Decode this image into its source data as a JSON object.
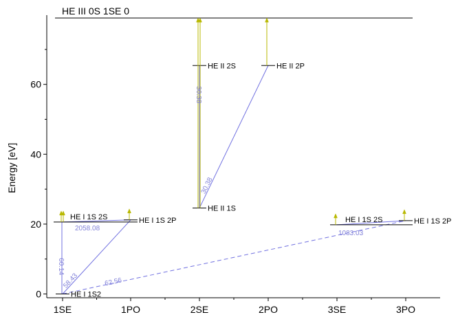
{
  "chart_data": {
    "type": "diagram",
    "ylabel": "Energy [eV]",
    "ylim": [
      0,
      80
    ],
    "y_ticks": [
      "0",
      "20",
      "40",
      "60"
    ],
    "x_categories": [
      "1SE",
      "1PO",
      "2SE",
      "2PO",
      "3SE",
      "3PO"
    ],
    "ionization_limit": {
      "label": "HE III 0S 1SE 0",
      "energy": 79.0
    },
    "levels": [
      {
        "id": "he1_1s2",
        "label": "HE I 1S2",
        "col": "1SE",
        "energy": 0.0
      },
      {
        "id": "he1_1s2s_1se",
        "label": "HE I 1S 2S",
        "col": "1SE",
        "energy": 20.6
      },
      {
        "id": "he1_1s2p_1po",
        "label": "HE I 1S 2P",
        "col": "1PO",
        "energy": 21.2
      },
      {
        "id": "he2_1s",
        "label": "HE II 1S",
        "col": "2SE",
        "energy": 24.6
      },
      {
        "id": "he2_2s",
        "label": "HE II 2S",
        "col": "2SE",
        "energy": 65.4
      },
      {
        "id": "he2_2p",
        "label": "HE II 2P",
        "col": "2PO",
        "energy": 65.4
      },
      {
        "id": "he1_1s2s_3se",
        "label": "HE I 1S 2S",
        "col": "3SE",
        "energy": 19.8
      },
      {
        "id": "he1_1s2p_3po",
        "label": "HE I 1S 2P",
        "col": "3PO",
        "energy": 21.0
      }
    ],
    "transitions": [
      {
        "from": "he1_1s2",
        "to": "he1_1s2p_1po",
        "label": "58.43",
        "style": "solid"
      },
      {
        "from": "he1_1s2s_1se",
        "to": "he1_1s2p_1po",
        "label": "2058.08",
        "style": "solid"
      },
      {
        "from": "he1_1s2",
        "to": "he1_1s2s_1se",
        "label": "60.14",
        "style": "solid"
      },
      {
        "from": "he1_1s2",
        "to": "he1_1s2p_3po",
        "label": "62.56",
        "style": "dashed"
      },
      {
        "from": "he1_1s2s_3se",
        "to": "he1_1s2p_3po",
        "label": "1083.03",
        "style": "solid"
      },
      {
        "from": "he2_1s",
        "to": "he2_2s",
        "label": "30.38",
        "style": "solid"
      },
      {
        "from": "he2_1s",
        "to": "he2_2p",
        "label": "30.38",
        "style": "solid"
      }
    ],
    "ionization_arrows": [
      {
        "from": "he1_1s2s_1se"
      },
      {
        "from": "he1_1s2s_1se",
        "offset": 3
      },
      {
        "from": "he1_1s2p_1po"
      },
      {
        "from": "he2_1s"
      },
      {
        "from": "he2_1s",
        "offset": 3
      },
      {
        "from": "he2_2p"
      },
      {
        "from": "he1_1s2s_3se"
      },
      {
        "from": "he1_1s2p_3po"
      }
    ]
  },
  "colors": {
    "transition": "#7070e0",
    "transition_label": "#8080d8",
    "ionization_arrow": "#b8b800",
    "level": "#000000",
    "axis": "#000000"
  }
}
